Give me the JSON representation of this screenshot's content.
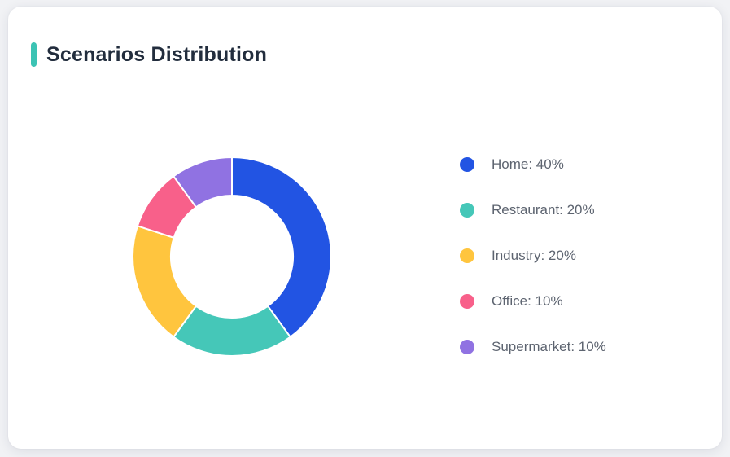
{
  "page": {
    "background": "#F1F2F5"
  },
  "card": {
    "title": "Scenarios Distribution",
    "background": "#FFFFFF",
    "accent_color": "#3CC3B4",
    "title_color": "#222D3D"
  },
  "legend": {
    "text_color": "#5D6470"
  },
  "chart_data": {
    "type": "pie",
    "subtype": "donut",
    "title": "Scenarios Distribution",
    "categories": [
      "Home",
      "Restaurant",
      "Industry",
      "Office",
      "Supermarket"
    ],
    "values": [
      40,
      20,
      20,
      10,
      10
    ],
    "unit": "%",
    "colors": [
      "#2254E3",
      "#45C7B8",
      "#FFC53E",
      "#F8608A",
      "#9072E2"
    ],
    "start_angle_deg": 0,
    "direction": "clockwise",
    "outer_radius_px": 122,
    "inner_radius_px": 75,
    "segment_border_color": "#FFFFFF",
    "segment_border_width": 2,
    "legend_position": "right",
    "legend_items": [
      "Home: 40%",
      "Restaurant: 20%",
      "Industry: 20%",
      "Office: 10%",
      "Supermarket: 10%"
    ]
  }
}
